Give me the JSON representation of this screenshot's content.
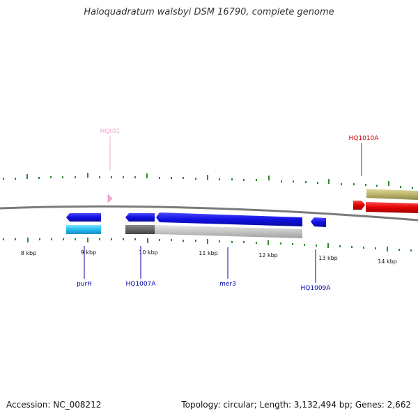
{
  "title": "Haloquadratum walsbyi DSM 16790, complete genome",
  "footer": {
    "accession": "Accession: NC_008212",
    "topology": "Topology: circular; Length: 3,132,494 bp; Genes: 2,662"
  },
  "ticks": {
    "labels": [
      "8 kbp",
      "9 kbp",
      "10 kbp",
      "11 kbp",
      "12 kbp",
      "13 kbp",
      "14 kbp"
    ]
  },
  "genes": {
    "purH": "purH",
    "hq1007a": "HQ1007A",
    "mer3": "mer3",
    "hq1009a": "HQ1009A",
    "hq1010a": "HQ1010A",
    "hqt01": "HQt01"
  },
  "colors": {
    "tick": "#2e8b2e",
    "cds_blue": "#1010e0",
    "cds_red": "#e00000",
    "gene_cyan": "#22bbee",
    "gene_olive": "#bdb56b",
    "trna_pink": "#f2a6cf",
    "backbone": "#7a7a7a"
  }
}
